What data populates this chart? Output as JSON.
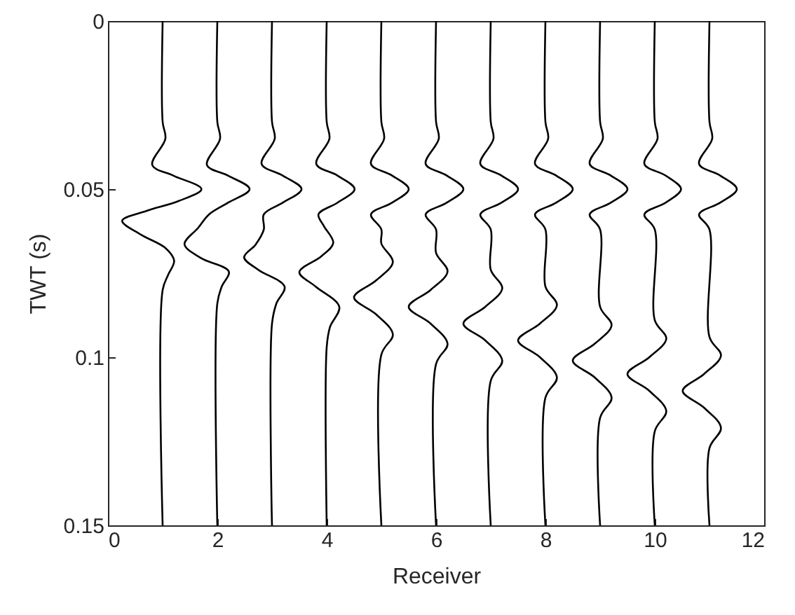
{
  "chart_data": {
    "type": "line",
    "xlabel": "Receiver",
    "ylabel": "TWT (s)",
    "xlim": [
      0,
      12
    ],
    "xticks": [
      0,
      2,
      4,
      6,
      8,
      10,
      12
    ],
    "ylim": [
      0.15,
      0
    ],
    "yticks": [
      0,
      0.05,
      0.1,
      0.15
    ],
    "grid": false,
    "line_style": "solid",
    "marker": "none",
    "series": [
      {
        "color": "#000000",
        "x": [
          1,
          1,
          1.05,
          0.81,
          1.2,
          1.71,
          1.3,
          0.7,
          0.26,
          0.6,
          1.05,
          1.21,
          1.1,
          1,
          1
        ],
        "values": [
          0,
          0.03,
          0.035,
          0.0428,
          0.046,
          0.05,
          0.0535,
          0.0565,
          0.0594,
          0.0635,
          0.0675,
          0.0713,
          0.0755,
          0.08,
          0.15
        ]
      },
      {
        "color": "#000000",
        "x": [
          2,
          2,
          2.05,
          1.81,
          2.2,
          2.59,
          2.2,
          1.85,
          1.65,
          1.4,
          1.7,
          2.21,
          2.08,
          2,
          2
        ],
        "values": [
          0,
          0.03,
          0.035,
          0.0428,
          0.046,
          0.05,
          0.054,
          0.0575,
          0.0615,
          0.0664,
          0.0705,
          0.0745,
          0.079,
          0.084,
          0.15
        ]
      },
      {
        "color": "#000000",
        "x": [
          3,
          3,
          3.05,
          2.81,
          3.2,
          3.54,
          3.2,
          2.85,
          2.85,
          2.7,
          2.49,
          2.75,
          3.23,
          3.08,
          3,
          3
        ],
        "values": [
          0,
          0.03,
          0.035,
          0.0425,
          0.046,
          0.05,
          0.054,
          0.0575,
          0.062,
          0.0665,
          0.0703,
          0.074,
          0.079,
          0.084,
          0.09,
          0.15
        ]
      },
      {
        "color": "#000000",
        "x": [
          4,
          4,
          4.05,
          3.81,
          4.2,
          4.51,
          4.2,
          3.85,
          3.95,
          4.12,
          3.9,
          3.5,
          3.8,
          4.23,
          4.06,
          4,
          4
        ],
        "values": [
          0,
          0.03,
          0.035,
          0.0425,
          0.046,
          0.05,
          0.054,
          0.0575,
          0.061,
          0.066,
          0.07,
          0.0747,
          0.079,
          0.085,
          0.091,
          0.097,
          0.15
        ]
      },
      {
        "color": "#000000",
        "x": [
          5,
          5,
          5.05,
          4.81,
          5.2,
          5.5,
          5.2,
          4.81,
          5,
          5,
          5.21,
          4.9,
          4.5,
          4.9,
          5.21,
          5,
          5
        ],
        "values": [
          0,
          0.03,
          0.035,
          0.0425,
          0.046,
          0.05,
          0.054,
          0.0575,
          0.062,
          0.0662,
          0.0717,
          0.0772,
          0.0822,
          0.0872,
          0.0932,
          0.0992,
          0.15
        ]
      },
      {
        "color": "#000000",
        "x": [
          6,
          6,
          6.05,
          5.81,
          6.2,
          6.5,
          6.2,
          5.81,
          6,
          6,
          6.21,
          5.9,
          5.5,
          5.9,
          6.21,
          6,
          6
        ],
        "values": [
          0,
          0.03,
          0.035,
          0.0425,
          0.046,
          0.05,
          0.054,
          0.0575,
          0.062,
          0.069,
          0.0745,
          0.08,
          0.085,
          0.09,
          0.096,
          0.102,
          0.15
        ]
      },
      {
        "color": "#000000",
        "x": [
          7,
          7,
          7.05,
          6.81,
          7.2,
          7.5,
          7.2,
          6.81,
          7,
          7,
          7.21,
          6.9,
          6.5,
          6.9,
          7.21,
          7,
          7
        ],
        "values": [
          0,
          0.03,
          0.035,
          0.0425,
          0.046,
          0.05,
          0.054,
          0.0575,
          0.062,
          0.074,
          0.0795,
          0.085,
          0.09,
          0.095,
          0.101,
          0.107,
          0.15
        ]
      },
      {
        "color": "#000000",
        "x": [
          8,
          8,
          8.05,
          7.81,
          8.2,
          8.5,
          8.2,
          7.81,
          8,
          8,
          8.21,
          7.9,
          7.5,
          7.9,
          8.21,
          8,
          8
        ],
        "values": [
          0,
          0.03,
          0.035,
          0.0425,
          0.046,
          0.05,
          0.054,
          0.0575,
          0.062,
          0.079,
          0.0845,
          0.09,
          0.095,
          0.1,
          0.106,
          0.112,
          0.15
        ]
      },
      {
        "color": "#000000",
        "x": [
          9,
          9,
          9.05,
          8.81,
          9.2,
          9.5,
          9.2,
          8.81,
          9,
          9,
          9.21,
          8.9,
          8.5,
          8.9,
          9.21,
          9,
          9
        ],
        "values": [
          0,
          0.03,
          0.035,
          0.0425,
          0.046,
          0.05,
          0.054,
          0.0575,
          0.062,
          0.085,
          0.0905,
          0.096,
          0.101,
          0.106,
          0.112,
          0.118,
          0.15
        ]
      },
      {
        "color": "#000000",
        "x": [
          10,
          10,
          10.05,
          9.81,
          10.2,
          10.48,
          10.2,
          9.81,
          10,
          10,
          10.21,
          9.9,
          9.5,
          9.9,
          10.21,
          10,
          10
        ],
        "values": [
          0,
          0.03,
          0.035,
          0.0425,
          0.046,
          0.05,
          0.054,
          0.0575,
          0.062,
          0.089,
          0.0945,
          0.1,
          0.105,
          0.11,
          0.116,
          0.122,
          0.15
        ]
      },
      {
        "color": "#000000",
        "x": [
          11,
          11,
          11.05,
          10.81,
          11.2,
          11.5,
          11.2,
          10.81,
          11,
          11,
          11.21,
          10.9,
          10.51,
          10.9,
          11.21,
          11,
          11
        ],
        "values": [
          0,
          0.03,
          0.035,
          0.0425,
          0.046,
          0.05,
          0.054,
          0.0575,
          0.062,
          0.094,
          0.0995,
          0.105,
          0.11,
          0.115,
          0.121,
          0.127,
          0.15
        ]
      }
    ]
  }
}
